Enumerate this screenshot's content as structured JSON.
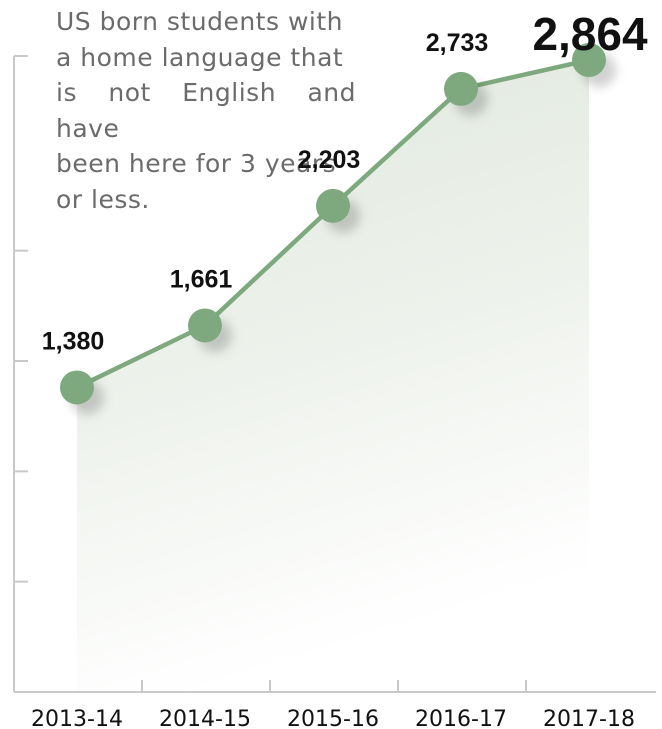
{
  "description": {
    "lines": [
      "US born students with",
      "a home language that",
      "is not English and have",
      "been here for 3 years",
      "or less."
    ]
  },
  "colors": {
    "line": "#7ea97e",
    "marker": "#7ea97e",
    "area_top": "#dfe8dd",
    "axis": "#c9c9c9",
    "label": "#111111"
  },
  "chart_data": {
    "type": "line",
    "categories": [
      "2013-14",
      "2014-15",
      "2015-16",
      "2016-17",
      "2017-18"
    ],
    "values": [
      1380,
      1661,
      2203,
      2733,
      2864
    ],
    "data_labels": [
      "1,380",
      "1,661",
      "2,203",
      "2,733",
      "2,864"
    ],
    "title": "",
    "xlabel": "",
    "ylabel": "",
    "ylim": [
      0,
      3000
    ],
    "y_ticks": [
      500,
      1000,
      1500,
      2000
    ],
    "grid": false,
    "legend": "none",
    "area_fill": true,
    "highlight_last_value": true
  }
}
